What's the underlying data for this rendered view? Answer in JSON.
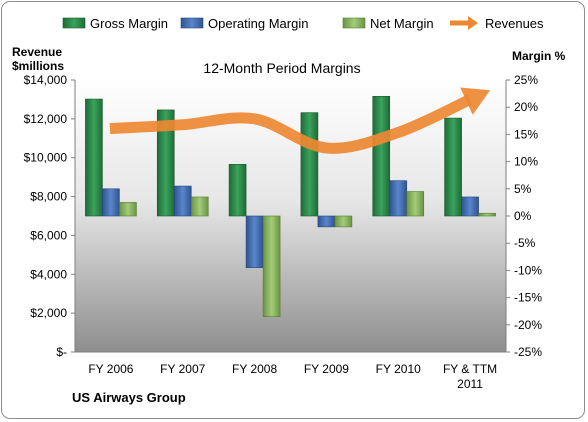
{
  "chart_data": {
    "type": "bar",
    "title": "12-Month Period Margins",
    "company": "US Airways Group",
    "left_axis_title_line1": "Revenue",
    "left_axis_title_line2": "$millions",
    "right_axis_title": "Margin %",
    "categories": [
      "FY 2006",
      "FY 2007",
      "FY 2008",
      "FY 2009",
      "FY 2010",
      "FY & TTM 2011"
    ],
    "category_lines": [
      [
        "FY 2006"
      ],
      [
        "FY 2007"
      ],
      [
        "FY 2008"
      ],
      [
        "FY 2009"
      ],
      [
        "FY 2010"
      ],
      [
        "FY & TTM",
        "2011"
      ]
    ],
    "left_axis": {
      "min": 0,
      "max": 14000,
      "step": 2000,
      "tick_labels": [
        "$-",
        "$2,000",
        "$4,000",
        "$6,000",
        "$8,000",
        "$10,000",
        "$12,000",
        "$14,000"
      ]
    },
    "right_axis": {
      "min": -25,
      "max": 25,
      "step": 5,
      "tick_labels": [
        "-25%",
        "-20%",
        "-15%",
        "-10%",
        "-5%",
        "0%",
        "5%",
        "10%",
        "15%",
        "20%",
        "25%"
      ]
    },
    "series": [
      {
        "name": "Gross Margin",
        "axis": "right",
        "kind": "bar",
        "color": "#2e8b4c",
        "values": [
          21.5,
          19.5,
          9.5,
          19,
          22,
          18
        ]
      },
      {
        "name": "Operating Margin",
        "axis": "right",
        "kind": "bar",
        "color": "#4a72b8",
        "values": [
          5,
          5.5,
          -9.5,
          -2,
          6.5,
          3.5
        ]
      },
      {
        "name": "Net Margin",
        "axis": "right",
        "kind": "bar",
        "color": "#8db864",
        "values": [
          2.5,
          3.5,
          -18.5,
          -2,
          4.5,
          0.5
        ]
      },
      {
        "name": "Revenues",
        "axis": "left",
        "kind": "arrow-line",
        "color": "#ee8833",
        "values": [
          11500,
          11700,
          12000,
          10500,
          11300,
          13000
        ]
      }
    ],
    "legend_position": "top",
    "background": "gradient-gray",
    "grid": false
  }
}
